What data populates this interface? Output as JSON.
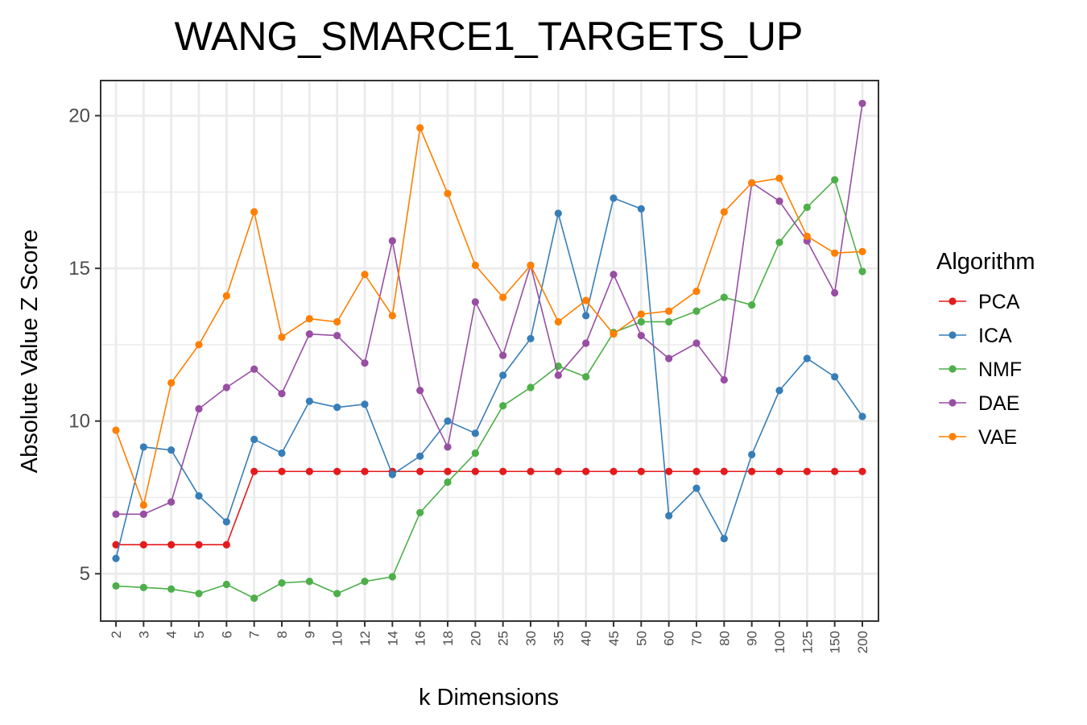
{
  "chart_data": {
    "type": "line",
    "title": "WANG_SMARCE1_TARGETS_UP",
    "xlabel": "k Dimensions",
    "ylabel": "Absolute Value Z Score",
    "categories": [
      "2",
      "3",
      "4",
      "5",
      "6",
      "7",
      "8",
      "9",
      "10",
      "12",
      "14",
      "16",
      "18",
      "20",
      "25",
      "30",
      "35",
      "40",
      "45",
      "50",
      "60",
      "70",
      "80",
      "90",
      "100",
      "125",
      "150",
      "200"
    ],
    "yticks": [
      5,
      10,
      15,
      20
    ],
    "ylim": [
      3.45,
      21.15
    ],
    "grid": true,
    "legend": {
      "title": "Algorithm",
      "placement": "right"
    },
    "series": [
      {
        "name": "PCA",
        "color": "#e41a1c",
        "values": [
          5.95,
          5.95,
          5.95,
          5.95,
          5.95,
          8.35,
          8.35,
          8.35,
          8.35,
          8.35,
          8.35,
          8.35,
          8.35,
          8.35,
          8.35,
          8.35,
          8.35,
          8.35,
          8.35,
          8.35,
          8.35,
          8.35,
          8.35,
          8.35,
          8.35,
          8.35,
          8.35,
          8.35
        ]
      },
      {
        "name": "ICA",
        "color": "#377eb8",
        "values": [
          5.5,
          9.15,
          9.05,
          7.55,
          6.7,
          9.4,
          8.95,
          10.65,
          10.45,
          10.55,
          8.25,
          8.85,
          10.0,
          9.6,
          11.5,
          12.7,
          16.8,
          13.45,
          17.3,
          16.95,
          6.9,
          7.8,
          6.15,
          8.9,
          11.0,
          12.05,
          11.45,
          10.15
        ]
      },
      {
        "name": "NMF",
        "color": "#4daf4a",
        "values": [
          4.6,
          4.55,
          4.5,
          4.35,
          4.65,
          4.2,
          4.7,
          4.75,
          4.35,
          4.75,
          4.9,
          7.0,
          8.0,
          8.95,
          10.5,
          11.1,
          11.8,
          11.45,
          12.9,
          13.25,
          13.25,
          13.6,
          14.05,
          13.8,
          15.85,
          17.0,
          17.9,
          14.9
        ]
      },
      {
        "name": "DAE",
        "color": "#984ea3",
        "values": [
          6.95,
          6.95,
          7.35,
          10.4,
          11.1,
          11.7,
          10.9,
          12.85,
          12.8,
          11.9,
          15.9,
          11.0,
          9.15,
          13.9,
          12.15,
          15.1,
          11.5,
          12.55,
          14.8,
          12.8,
          12.05,
          12.55,
          11.35,
          17.8,
          17.2,
          15.9,
          14.2,
          20.4
        ]
      },
      {
        "name": "VAE",
        "color": "#ff7f00",
        "values": [
          9.7,
          7.25,
          11.25,
          12.5,
          14.1,
          16.85,
          12.75,
          13.35,
          13.25,
          14.8,
          13.45,
          19.6,
          17.45,
          15.1,
          14.05,
          15.1,
          13.25,
          13.95,
          12.85,
          13.5,
          13.6,
          14.25,
          16.85,
          17.8,
          17.95,
          16.05,
          15.5,
          15.55
        ]
      }
    ]
  }
}
